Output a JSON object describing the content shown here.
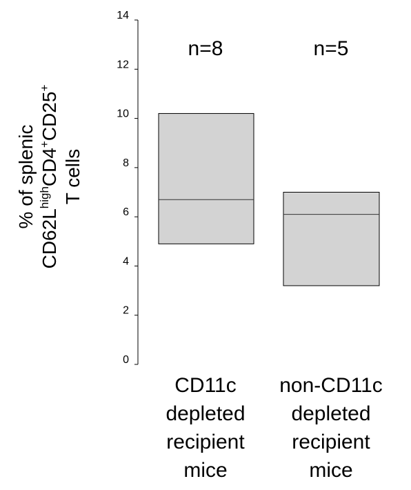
{
  "chart_data": {
    "type": "box",
    "ylim": [
      0,
      14
    ],
    "yticks": [
      "0",
      "2",
      "4",
      "6",
      "8",
      "10",
      "12",
      "14"
    ],
    "ylabel": {
      "line1": "% of splenic",
      "line2_parts": [
        "CD62L",
        "high",
        "CD4",
        "+",
        "CD25",
        "+"
      ],
      "line3": "T cells"
    },
    "categories": [
      {
        "label_lines": [
          "CD11c",
          "depleted",
          "recipient",
          "mice"
        ],
        "n_label": "n=8",
        "low": 4.9,
        "median": 6.7,
        "high": 10.2,
        "color": "#d3d3d3"
      },
      {
        "label_lines": [
          "non-CD11c",
          "depleted",
          "recipient",
          "mice"
        ],
        "n_label": "n=5",
        "low": 3.2,
        "median": 6.1,
        "high": 7.0,
        "color": "#d3d3d3"
      }
    ]
  }
}
